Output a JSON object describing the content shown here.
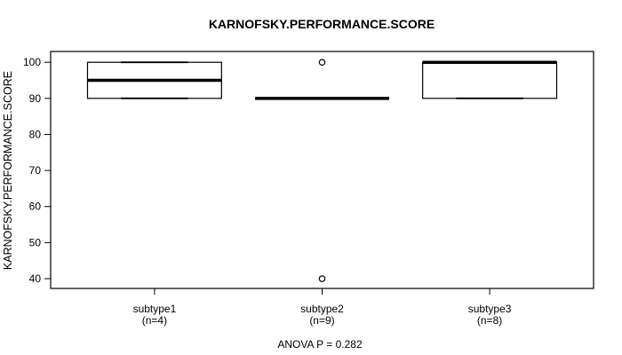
{
  "chart_data": {
    "type": "boxplot",
    "title": "KARNOFSKY.PERFORMANCE.SCORE",
    "ylabel": "KARNOFSKY.PERFORMANCE.SCORE",
    "xlabel": "",
    "annotation": "ANOVA P = 0.282",
    "y_ticks": [
      100,
      90,
      80,
      70,
      60,
      50,
      40
    ],
    "ylim": [
      37.3,
      103.0
    ],
    "xlim": [
      0.38,
      3.62
    ],
    "box_width_units": 0.8,
    "staple_ratio": 0.5,
    "grid": false,
    "legend": null,
    "colors": {
      "stroke": "#000000",
      "fill": "#ffffff",
      "background": "#ffffff"
    },
    "categories": [
      "subtype1",
      "subtype2",
      "subtype3"
    ],
    "groups": [
      {
        "label": "subtype1",
        "sublabel": "(n=4)",
        "n": 4,
        "q1": 90,
        "median": 95,
        "q3": 100,
        "whisker_low": 90,
        "whisker_high": 100,
        "outliers": []
      },
      {
        "label": "subtype2",
        "sublabel": "(n=9)",
        "n": 9,
        "q1": 90,
        "median": 90,
        "q3": 90,
        "whisker_low": 90,
        "whisker_high": 90,
        "outliers": [
          100,
          40
        ]
      },
      {
        "label": "subtype3",
        "sublabel": "(n=8)",
        "n": 8,
        "q1": 90,
        "median": 100,
        "q3": 100,
        "whisker_low": 90,
        "whisker_high": 100,
        "outliers": []
      }
    ]
  }
}
